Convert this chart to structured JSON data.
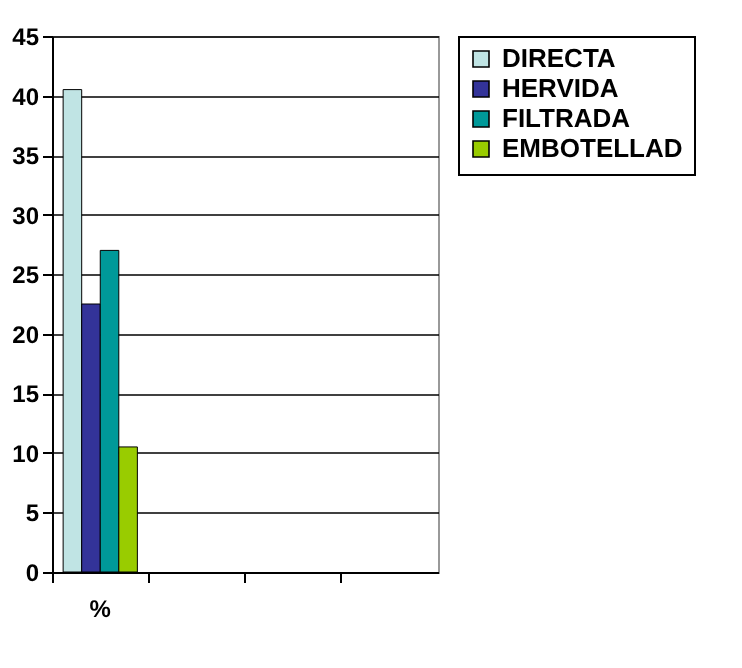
{
  "chart_data": {
    "type": "bar",
    "categories": [
      "%",
      null,
      null,
      null
    ],
    "series": [
      {
        "name": "DIRECTA",
        "color": "#c0e4e4",
        "values": [
          40.5,
          null,
          null,
          null
        ]
      },
      {
        "name": "HERVIDA",
        "color": "#333399",
        "values": [
          22.5,
          null,
          null,
          null
        ]
      },
      {
        "name": "FILTRADA",
        "color": "#009999",
        "values": [
          27,
          null,
          null,
          null
        ]
      },
      {
        "name": "EMBOTELLAD",
        "color": "#99cc00",
        "values": [
          10.5,
          null,
          null,
          null
        ]
      }
    ],
    "ylim": [
      0,
      45
    ],
    "yticks": [
      0,
      5,
      10,
      15,
      20,
      25,
      30,
      35,
      40,
      45
    ],
    "grid": "y",
    "legend": "top right"
  }
}
